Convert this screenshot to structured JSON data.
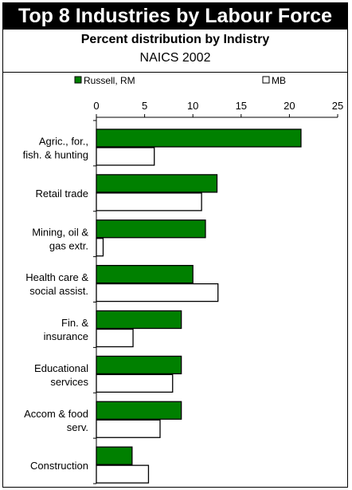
{
  "header": {
    "title": "Top 8 Industries by Labour Force",
    "subtitle": "Percent distribution by Indistry",
    "subtitle2": "NAICS 2002"
  },
  "colors": {
    "series_rm": "#008000",
    "series_mb": "#ffffff",
    "title_bg": "#000000"
  },
  "chart_data": {
    "type": "bar",
    "orientation": "horizontal",
    "title": "Top 8 Industries by Labour Force",
    "subtitle": "Percent distribution by Indistry",
    "categories": [
      [
        "Agric., for.,",
        "fish. & hunting"
      ],
      [
        "Retail trade"
      ],
      [
        "Mining, oil &",
        "gas extr."
      ],
      [
        "Health care &",
        "social assist."
      ],
      [
        "Fin. &",
        "insurance"
      ],
      [
        "Educational",
        "services"
      ],
      [
        "Accom & food",
        "serv."
      ],
      [
        "Construction"
      ]
    ],
    "series": [
      {
        "name": "Russell, RM",
        "values": [
          21.2,
          12.5,
          11.3,
          10.0,
          8.8,
          8.8,
          8.8,
          3.7
        ]
      },
      {
        "name": "MB",
        "values": [
          6.0,
          10.9,
          0.7,
          12.6,
          3.8,
          7.9,
          6.6,
          5.4
        ]
      }
    ],
    "xlim": [
      0,
      25
    ],
    "xticks": [
      "0",
      "5",
      "10",
      "15",
      "20",
      "25"
    ],
    "legend_position": "top",
    "grid": false
  }
}
